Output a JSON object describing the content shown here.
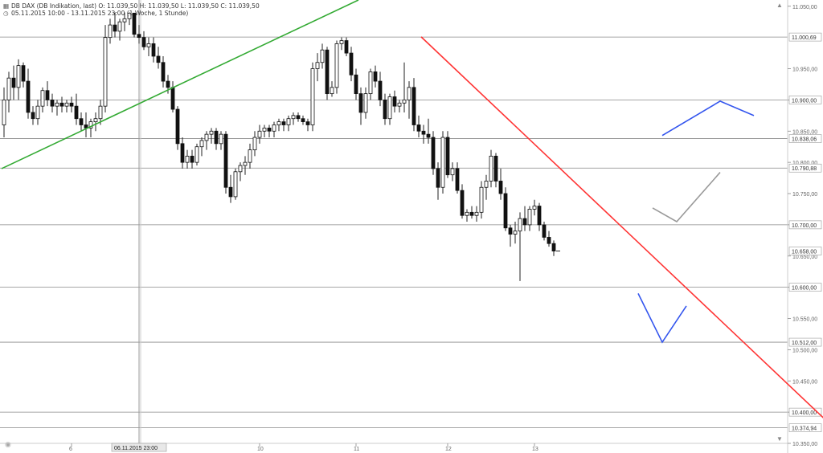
{
  "header": {
    "instrument_line": "DB DAX (DB Indikation, last)  O: 11.039,50  H: 11.039,50  L: 11.039,50  C: 11.039,50",
    "period_line": "05.11.2015 10:00 - 13.11.2015 23:00 (1 Woche, 1 Stunde)",
    "chart_icon": "candlestick-icon",
    "clock_icon": "clock-icon"
  },
  "crosshair_label": "06.11.2015 23:00",
  "chart_data": {
    "type": "candlestick",
    "title": "DB DAX (DB Indikation, last)",
    "period": "05.11.2015 10:00 - 13.11.2015 23:00 (1 Woche, 1 Stunde)",
    "ylim": [
      10350,
      11060
    ],
    "y_ticks": [
      "11.050,00",
      "10.950,00",
      "10.900,00",
      "10.850,00",
      "10.800,00",
      "10.750,00",
      "10.700,00",
      "10.650,00",
      "10.600,00",
      "10.550,00",
      "10.500,00",
      "10.450,00",
      "10.400,00",
      "10.350,00"
    ],
    "y_tick_values": [
      11050,
      10950,
      10900,
      10850,
      10800,
      10750,
      10700,
      10650,
      10600,
      10550,
      10500,
      10450,
      10400,
      10350
    ],
    "x_ticks": [
      "6",
      "10",
      "11",
      "12",
      "13"
    ],
    "x_tick_index": [
      14,
      53,
      73,
      92,
      110
    ],
    "levels": [
      {
        "value": 11000.69,
        "label": "11.000,69"
      },
      {
        "value": 10900,
        "label": "10.900,00"
      },
      {
        "value": 10838.06,
        "label": "10.838,06"
      },
      {
        "value": 10790.88,
        "label": "10.790,88"
      },
      {
        "value": 10700,
        "label": "10.700,00"
      },
      {
        "value": 10600,
        "label": "10.600,00"
      },
      {
        "value": 10512,
        "label": "10.512,00"
      },
      {
        "value": 10400,
        "label": "10.400,00"
      },
      {
        "value": 10374.94,
        "label": "10.374,94"
      }
    ],
    "last_price": {
      "value": 10658,
      "label": "10.658,00"
    },
    "candles": [
      [
        10860,
        10920,
        10840,
        10900
      ],
      [
        10900,
        10945,
        10880,
        10935
      ],
      [
        10935,
        10955,
        10900,
        10920
      ],
      [
        10920,
        10965,
        10900,
        10955
      ],
      [
        10955,
        10960,
        10920,
        10930
      ],
      [
        10930,
        10950,
        10870,
        10880
      ],
      [
        10880,
        10890,
        10860,
        10870
      ],
      [
        10870,
        10900,
        10860,
        10890
      ],
      [
        10890,
        10920,
        10880,
        10915
      ],
      [
        10915,
        10930,
        10890,
        10900
      ],
      [
        10900,
        10910,
        10880,
        10890
      ],
      [
        10890,
        10900,
        10875,
        10895
      ],
      [
        10895,
        10905,
        10880,
        10890
      ],
      [
        10890,
        10900,
        10880,
        10895
      ],
      [
        10895,
        10905,
        10880,
        10890
      ],
      [
        10890,
        10910,
        10860,
        10870
      ],
      [
        10870,
        10880,
        10850,
        10860
      ],
      [
        10860,
        10880,
        10840,
        10855
      ],
      [
        10855,
        10870,
        10840,
        10865
      ],
      [
        10865,
        10880,
        10850,
        10870
      ],
      [
        10870,
        10900,
        10860,
        10890
      ],
      [
        10890,
        11020,
        10880,
        11000
      ],
      [
        11000,
        11030,
        10990,
        11020
      ],
      [
        11020,
        11040,
        11000,
        11010
      ],
      [
        11010,
        11030,
        10995,
        11025
      ],
      [
        11025,
        11040,
        11010,
        11030
      ],
      [
        11030,
        11040,
        11020,
        11039
      ],
      [
        11039,
        11039,
        11000,
        11005
      ],
      [
        11005,
        11020,
        10990,
        11000
      ],
      [
        11000,
        11010,
        10980,
        10985
      ],
      [
        10985,
        11000,
        10970,
        10990
      ],
      [
        10990,
        11000,
        10960,
        10970
      ],
      [
        10970,
        10985,
        10950,
        10960
      ],
      [
        10960,
        10970,
        10920,
        10930
      ],
      [
        10930,
        10940,
        10910,
        10920
      ],
      [
        10920,
        10930,
        10880,
        10885
      ],
      [
        10885,
        10890,
        10820,
        10830
      ],
      [
        10830,
        10840,
        10790,
        10800
      ],
      [
        10800,
        10820,
        10790,
        10810
      ],
      [
        10810,
        10820,
        10790,
        10800
      ],
      [
        10800,
        10830,
        10795,
        10825
      ],
      [
        10825,
        10840,
        10810,
        10835
      ],
      [
        10835,
        10850,
        10820,
        10845
      ],
      [
        10845,
        10855,
        10830,
        10850
      ],
      [
        10850,
        10855,
        10820,
        10830
      ],
      [
        10830,
        10850,
        10820,
        10845
      ],
      [
        10845,
        10850,
        10750,
        10760
      ],
      [
        10760,
        10780,
        10735,
        10745
      ],
      [
        10745,
        10790,
        10740,
        10785
      ],
      [
        10785,
        10800,
        10770,
        10795
      ],
      [
        10795,
        10810,
        10780,
        10800
      ],
      [
        10800,
        10830,
        10790,
        10820
      ],
      [
        10820,
        10850,
        10810,
        10840
      ],
      [
        10840,
        10860,
        10830,
        10850
      ],
      [
        10850,
        10860,
        10840,
        10855
      ],
      [
        10855,
        10860,
        10840,
        10850
      ],
      [
        10850,
        10865,
        10840,
        10860
      ],
      [
        10860,
        10870,
        10850,
        10865
      ],
      [
        10865,
        10870,
        10850,
        10860
      ],
      [
        10860,
        10875,
        10850,
        10870
      ],
      [
        10870,
        10880,
        10860,
        10875
      ],
      [
        10875,
        10880,
        10865,
        10870
      ],
      [
        10870,
        10875,
        10860,
        10865
      ],
      [
        10865,
        10870,
        10850,
        10860
      ],
      [
        10860,
        10960,
        10850,
        10950
      ],
      [
        10950,
        10975,
        10930,
        10960
      ],
      [
        10960,
        10990,
        10950,
        10980
      ],
      [
        10980,
        10985,
        10900,
        10910
      ],
      [
        10910,
        10930,
        10905,
        10920
      ],
      [
        10920,
        10995,
        10910,
        10990
      ],
      [
        10990,
        11000,
        10980,
        10995
      ],
      [
        10995,
        11000,
        10970,
        10975
      ],
      [
        10975,
        10985,
        10930,
        10940
      ],
      [
        10940,
        10950,
        10900,
        10910
      ],
      [
        10910,
        10920,
        10860,
        10880
      ],
      [
        10880,
        10920,
        10870,
        10910
      ],
      [
        10910,
        10950,
        10900,
        10945
      ],
      [
        10945,
        10955,
        10920,
        10930
      ],
      [
        10930,
        10945,
        10890,
        10900
      ],
      [
        10900,
        10910,
        10860,
        10870
      ],
      [
        10870,
        10910,
        10860,
        10905
      ],
      [
        10905,
        10915,
        10880,
        10890
      ],
      [
        10890,
        10900,
        10880,
        10895
      ],
      [
        10895,
        10960,
        10880,
        10900
      ],
      [
        10900,
        10930,
        10870,
        10920
      ],
      [
        10920,
        10935,
        10850,
        10860
      ],
      [
        10860,
        10875,
        10840,
        10850
      ],
      [
        10850,
        10860,
        10830,
        10845
      ],
      [
        10845,
        10870,
        10830,
        10840
      ],
      [
        10840,
        10850,
        10780,
        10790
      ],
      [
        10790,
        10800,
        10740,
        10760
      ],
      [
        10760,
        10850,
        10750,
        10840
      ],
      [
        10840,
        10850,
        10775,
        10780
      ],
      [
        10780,
        10800,
        10770,
        10790
      ],
      [
        10790,
        10800,
        10750,
        10755
      ],
      [
        10755,
        10765,
        10710,
        10715
      ],
      [
        10715,
        10725,
        10705,
        10720
      ],
      [
        10720,
        10730,
        10710,
        10715
      ],
      [
        10715,
        10730,
        10705,
        10720
      ],
      [
        10720,
        10770,
        10710,
        10760
      ],
      [
        10760,
        10780,
        10740,
        10770
      ],
      [
        10770,
        10820,
        10760,
        10810
      ],
      [
        10810,
        10815,
        10760,
        10770
      ],
      [
        10770,
        10790,
        10740,
        10750
      ],
      [
        10750,
        10760,
        10690,
        10695
      ],
      [
        10695,
        10700,
        10665,
        10685
      ],
      [
        10685,
        10705,
        10670,
        10690
      ],
      [
        10690,
        10720,
        10610,
        10710
      ],
      [
        10710,
        10730,
        10690,
        10700
      ],
      [
        10700,
        10730,
        10690,
        10725
      ],
      [
        10725,
        10740,
        10715,
        10730
      ],
      [
        10730,
        10735,
        10690,
        10700
      ],
      [
        10700,
        10705,
        10675,
        10680
      ],
      [
        10680,
        10690,
        10665,
        10670
      ],
      [
        10670,
        10675,
        10650,
        10658
      ]
    ],
    "drawings": [
      {
        "name": "green-trendline",
        "color": "#33aa33",
        "points": [
          [
            0,
            10790
          ],
          [
            74,
            11060
          ]
        ]
      },
      {
        "name": "red-trendline",
        "color": "#ff3333",
        "points": [
          [
            87,
            11001
          ],
          [
            176,
            10350
          ]
        ]
      },
      {
        "name": "blue-up-sketch",
        "color": "#3355ee",
        "points": [
          [
            137,
            10843
          ],
          [
            149,
            10898
          ],
          [
            156,
            10875
          ]
        ]
      },
      {
        "name": "gray-check-sketch",
        "color": "#999999",
        "points": [
          [
            135,
            10727
          ],
          [
            140,
            10705
          ],
          [
            149,
            10784
          ]
        ]
      },
      {
        "name": "blue-v-sketch",
        "color": "#3355ee",
        "points": [
          [
            132,
            10590
          ],
          [
            137,
            10512
          ],
          [
            142,
            10570
          ]
        ]
      }
    ]
  }
}
